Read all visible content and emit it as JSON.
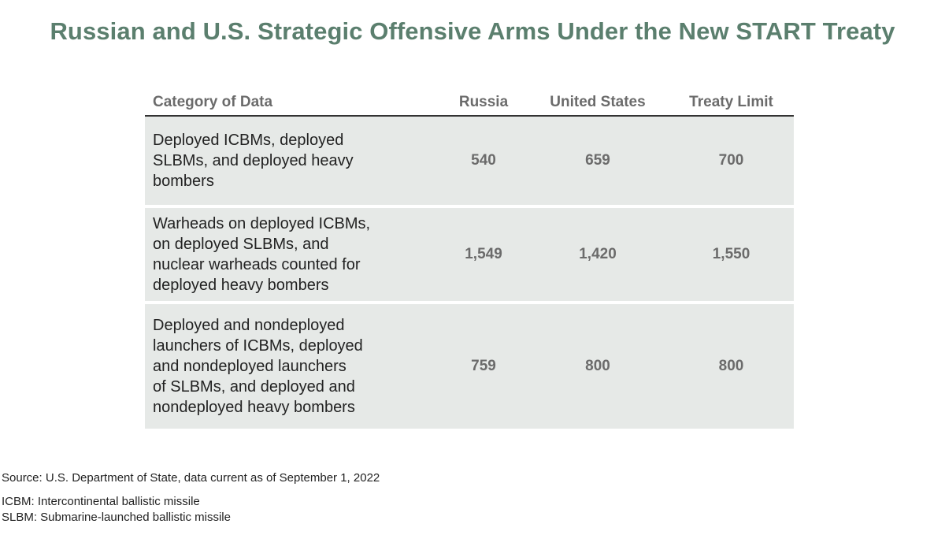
{
  "title": "Russian and U.S. Strategic Offensive Arms Under the New START Treaty",
  "chart_data": {
    "type": "table",
    "title": "Russian and U.S. Strategic Offensive Arms Under the New START Treaty",
    "columns": [
      "Category of Data",
      "Russia",
      "United States",
      "Treaty Limit"
    ],
    "rows": [
      {
        "category": "Deployed ICBMs, deployed SLBMs, and deployed heavy bombers",
        "lines": [
          "Deployed ICBMs, deployed",
          "SLBMs, and deployed heavy",
          "bombers"
        ],
        "russia": "540",
        "united_states": "659",
        "treaty_limit": "700"
      },
      {
        "category": "Warheads on deployed ICBMs, on deployed SLBMs, and nuclear warheads counted for deployed heavy bombers",
        "lines": [
          "Warheads on deployed ICBMs,",
          "on deployed SLBMs, and",
          "nuclear warheads counted for",
          "deployed heavy bombers"
        ],
        "russia": "1,549",
        "united_states": "1,420",
        "treaty_limit": "1,550"
      },
      {
        "category": "Deployed and nondeployed launchers of ICBMs, deployed and nondeployed launchers of SLBMs, and deployed and nondeployed heavy bombers",
        "lines": [
          "Deployed and nondeployed",
          "launchers of ICBMs, deployed",
          "and nondeployed launchers",
          "of SLBMs, and deployed and",
          "nondeployed heavy bombers"
        ],
        "russia": "759",
        "united_states": "800",
        "treaty_limit": "800"
      }
    ]
  },
  "notes": {
    "source": "Source: U.S. Department of State, data current as of September 1, 2022",
    "icbm": "ICBM: Intercontinental ballistic missile",
    "slbm": "SLBM: Submarine-launched ballistic missile"
  },
  "colors": {
    "title": "#5b7f6e",
    "row_background": "#e6e9e7",
    "header_text": "#6b6b6b",
    "rule": "#333333"
  }
}
